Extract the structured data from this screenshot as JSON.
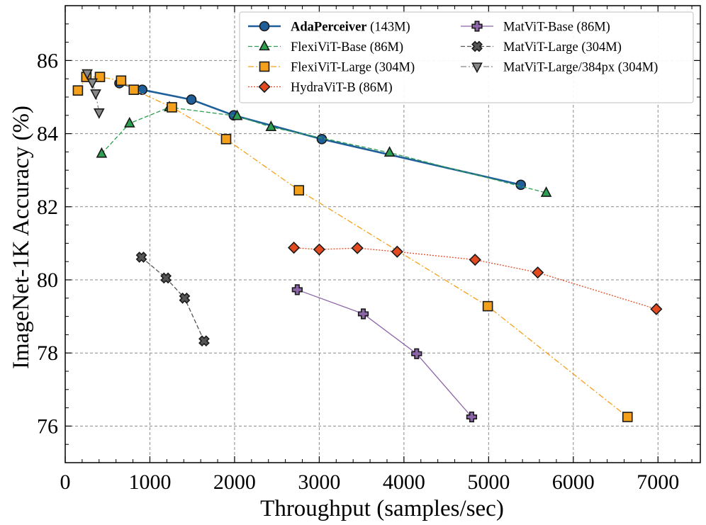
{
  "chart_data": {
    "type": "line",
    "title": "",
    "xlabel": "Throughput (samples/sec)",
    "ylabel": "ImageNet-1K Accuracy (%)",
    "xlim": [
      0,
      7500
    ],
    "ylim": [
      75,
      87.5
    ],
    "xticks": [
      0,
      1000,
      2000,
      3000,
      4000,
      5000,
      6000,
      7000
    ],
    "yticks": [
      76,
      78,
      80,
      82,
      84,
      86
    ],
    "grid": true,
    "legend_position": "top-right",
    "series": [
      {
        "name": "AdaPerceiver",
        "params": "(143M)",
        "color": "#1f5f99",
        "marker": "circle",
        "line_style": "solid",
        "x": [
          640,
          910,
          1490,
          1990,
          3030,
          5380
        ],
        "y": [
          85.38,
          85.2,
          84.93,
          84.5,
          83.85,
          82.6
        ]
      },
      {
        "name": "FlexiViT-Base",
        "params": "(86M)",
        "color": "#2ca050",
        "marker": "triangle-up",
        "line_style": "dashed",
        "x": [
          430,
          760,
          1230,
          2030,
          2430,
          3830,
          5680
        ],
        "y": [
          83.45,
          84.28,
          84.72,
          84.48,
          84.18,
          83.48,
          82.38
        ]
      },
      {
        "name": "FlexiViT-Large",
        "params": "(304M)",
        "color": "#f5a01a",
        "marker": "square",
        "line_style": "dashdot",
        "x": [
          150,
          250,
          410,
          660,
          810,
          1260,
          1900,
          2760,
          4990,
          6640
        ],
        "y": [
          85.18,
          85.55,
          85.55,
          85.45,
          85.2,
          84.72,
          83.85,
          82.45,
          79.28,
          76.25
        ]
      },
      {
        "name": "HydraViT-B",
        "params": "(86M)",
        "color": "#e34a1f",
        "marker": "diamond",
        "line_style": "dotted",
        "x": [
          2700,
          3000,
          3450,
          3920,
          4840,
          5580,
          6980
        ],
        "y": [
          80.88,
          80.83,
          80.87,
          80.77,
          80.55,
          80.2,
          79.2
        ]
      },
      {
        "name": "MatViT-Base",
        "params": "(86M)",
        "color": "#8c64a8",
        "marker": "plus",
        "line_style": "solid",
        "x": [
          2740,
          3520,
          4150,
          4800
        ],
        "y": [
          79.73,
          79.07,
          77.98,
          76.25
        ]
      },
      {
        "name": "MatViT-Large",
        "params": "(304M)",
        "color": "#555555",
        "marker": "x",
        "line_style": "dashed",
        "x": [
          900,
          1190,
          1410,
          1640
        ],
        "y": [
          80.62,
          80.05,
          79.5,
          78.33
        ]
      },
      {
        "name": "MatViT-Large/384px",
        "params": "(304M)",
        "color": "#888888",
        "marker": "triangle-down",
        "line_style": "dashdot",
        "x": [
          260,
          320,
          360,
          400
        ],
        "y": [
          85.65,
          85.4,
          85.1,
          84.58
        ]
      }
    ]
  }
}
